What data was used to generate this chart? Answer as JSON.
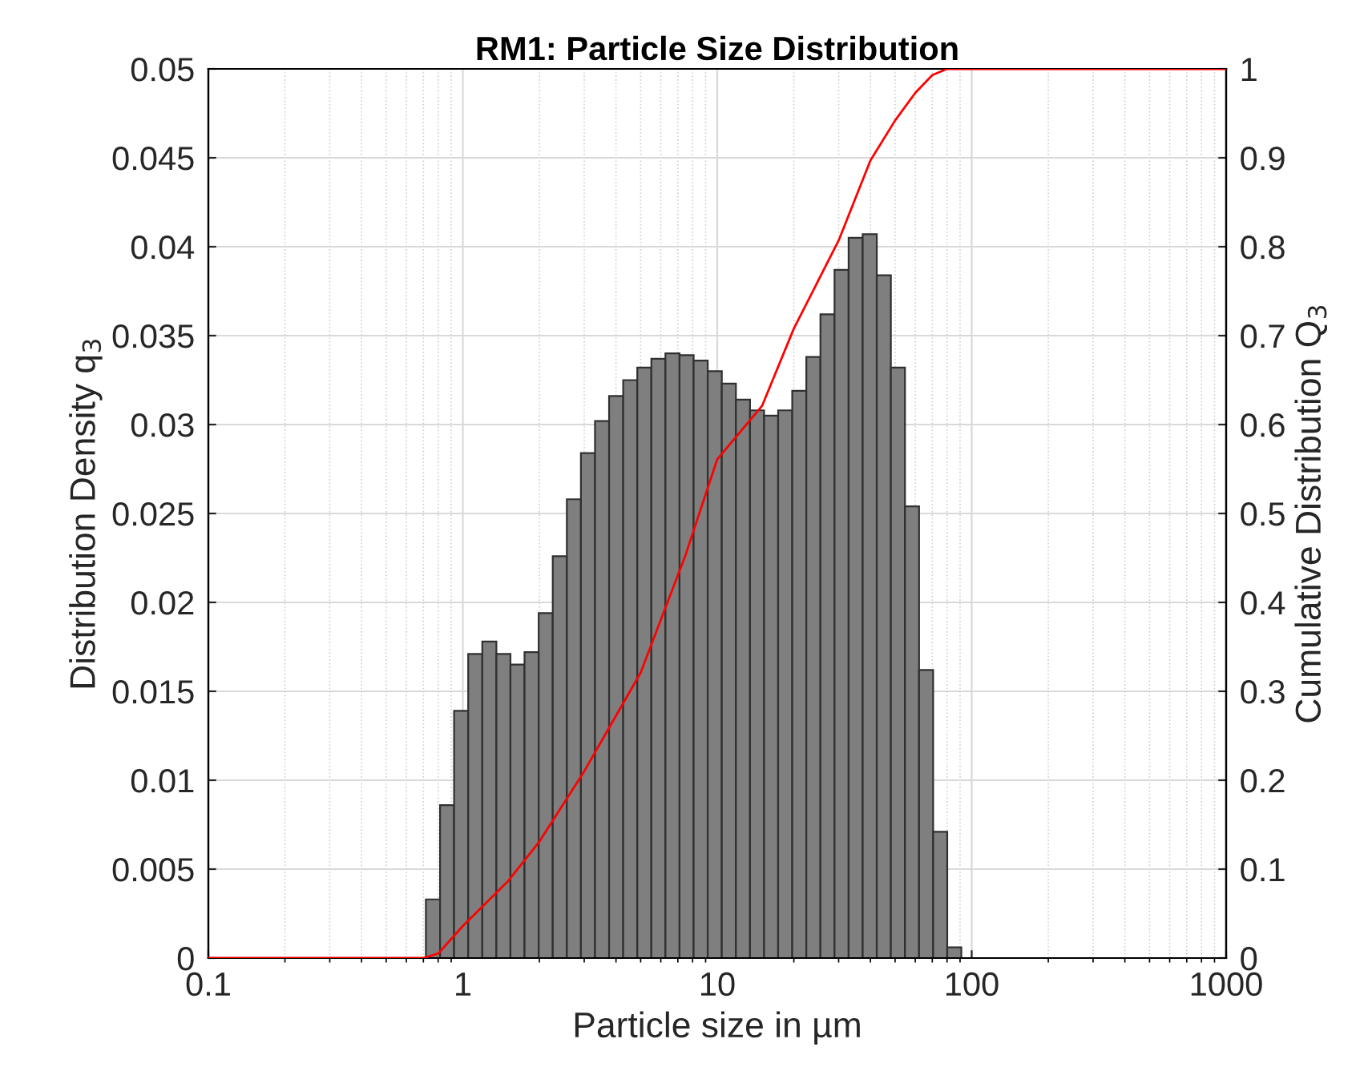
{
  "chart_data": {
    "type": "histogram",
    "title": "RM1: Particle Size Distribution",
    "xlabel": "Particle size in µm",
    "ylabel": "Distribution Density q$_{3}$",
    "y2label": "Cumulative Distribution Q$_{3}$",
    "log": "x",
    "grid": true,
    "xlim": [
      0.1,
      1000
    ],
    "xticks": [
      0.1,
      1,
      10,
      100,
      1000
    ],
    "ylim": [
      0,
      0.05
    ],
    "yticks": [
      0,
      0.005,
      0.01,
      0.015,
      0.02,
      0.025,
      0.03,
      0.035,
      0.04,
      0.045,
      0.05
    ],
    "y2lim": [
      0,
      1
    ],
    "y2ticks": [
      0,
      0.1,
      0.2,
      0.3,
      0.4,
      0.5,
      0.6,
      0.7,
      0.8,
      0.9,
      1
    ],
    "series": [
      {
        "color": "#7f7f7f",
        "bins": [
          0.716,
          0.814,
          0.924,
          1.05,
          1.193,
          1.355,
          1.539,
          1.748,
          1.987,
          2.257,
          2.564,
          2.912,
          3.308,
          3.758,
          4.269,
          4.85,
          5.508,
          6.257,
          7.108,
          8.075,
          9.173,
          10.42,
          11.84,
          13.45,
          15.28,
          17.35,
          19.71,
          22.39,
          25.44,
          28.9,
          32.83,
          37.29,
          42.36,
          48.12,
          54.67,
          62.1,
          70.54,
          80.14,
          91.03
        ],
        "values": [
          0.0033,
          0.0086,
          0.0139,
          0.0171,
          0.0178,
          0.0171,
          0.0165,
          0.0172,
          0.0194,
          0.0226,
          0.0258,
          0.0284,
          0.0302,
          0.0316,
          0.0325,
          0.0332,
          0.0337,
          0.034,
          0.0339,
          0.0336,
          0.033,
          0.0323,
          0.0314,
          0.0308,
          0.0305,
          0.0308,
          0.0319,
          0.0338,
          0.0362,
          0.0387,
          0.0405,
          0.0407,
          0.0384,
          0.0332,
          0.0254,
          0.0162,
          0.0071,
          0.0006
        ]
      },
      {
        "type": "line",
        "axis": "y2",
        "color": "#ff0000",
        "x": [
          0.1,
          0.7,
          0.8,
          1,
          1.5,
          2,
          3,
          5,
          7.5,
          10,
          15,
          20,
          30,
          40,
          50,
          60,
          70,
          80,
          1000
        ],
        "values": [
          0,
          0,
          0.005,
          0.036,
          0.086,
          0.131,
          0.21,
          0.321,
          0.453,
          0.561,
          0.621,
          0.708,
          0.807,
          0.897,
          0.942,
          0.973,
          0.993,
          1,
          1
        ]
      }
    ]
  }
}
